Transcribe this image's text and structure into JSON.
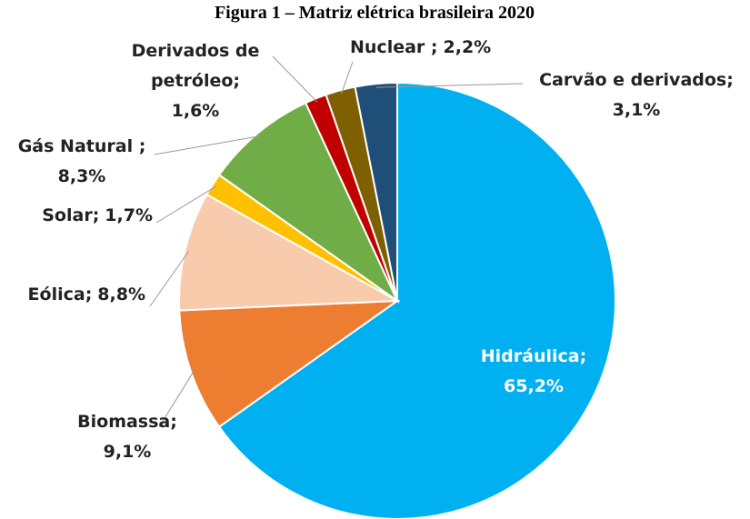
{
  "chart_data": {
    "type": "pie",
    "title": "Figura 1 – Matriz elétrica brasileira 2020",
    "categories": [
      "Hidráulica;",
      "Biomassa;",
      "Eólica;",
      "Solar;",
      "Gás Natural ;",
      "Derivados de petróleo;",
      "Nuclear ;",
      "Carvão e derivados;"
    ],
    "values": [
      65.2,
      9.1,
      8.8,
      1.7,
      8.3,
      1.6,
      2.2,
      3.1
    ],
    "value_labels": [
      "65,2%",
      "9,1%",
      "8,8%",
      "1,7%",
      "8,3%",
      "1,6%",
      "2,2%",
      "3,1%"
    ],
    "colors": [
      "#00b0f0",
      "#ed7d31",
      "#f8cbad",
      "#ffc000",
      "#70ad47",
      "#c00000",
      "#7f6000",
      "#1f4e79"
    ]
  }
}
